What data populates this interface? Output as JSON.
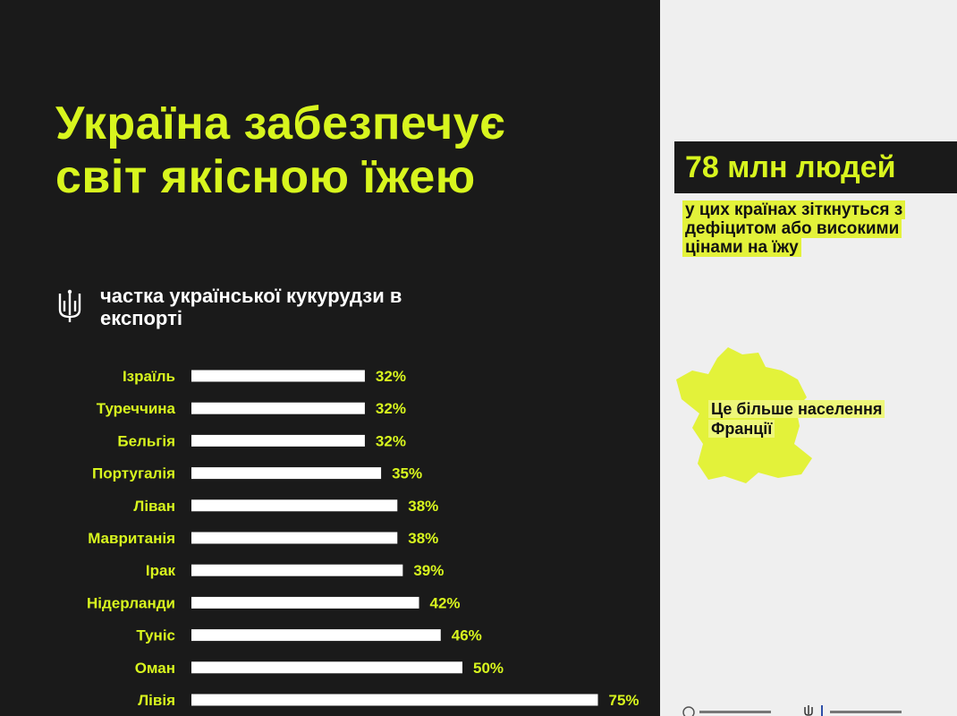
{
  "title_lines": [
    "Україна забезпечує",
    "світ якісною їжею"
  ],
  "chart_data": {
    "type": "bar",
    "orientation": "horizontal",
    "title": "частка української кукурудзи в експорті",
    "categories": [
      "Ізраїль",
      "Туреччина",
      "Бельгія",
      "Португалія",
      "Ліван",
      "Мавританія",
      "Ірак",
      "Нідерланди",
      "Туніс",
      "Оман",
      "Лівія"
    ],
    "values": [
      32,
      32,
      32,
      35,
      38,
      38,
      39,
      42,
      46,
      50,
      75
    ],
    "value_labels": [
      "32%",
      "32%",
      "32%",
      "35%",
      "38%",
      "38%",
      "39%",
      "42%",
      "46%",
      "50%",
      "75%"
    ],
    "unit": "%",
    "xlim": [
      0,
      100
    ],
    "grid": false,
    "colors": {
      "bars": "#ffffff",
      "labels": "#d8f51e",
      "background": "#1a1a1a"
    }
  },
  "stat": {
    "headline": "78 млн людей",
    "description": "у цих країнах зіткнуться з дефіцитом або високими цінами на їжу"
  },
  "map": {
    "label": "Це більше населення Франції",
    "icon": "france-map-icon",
    "color": "#e3f23a"
  },
  "icons": {
    "emblem": "trident-icon"
  }
}
